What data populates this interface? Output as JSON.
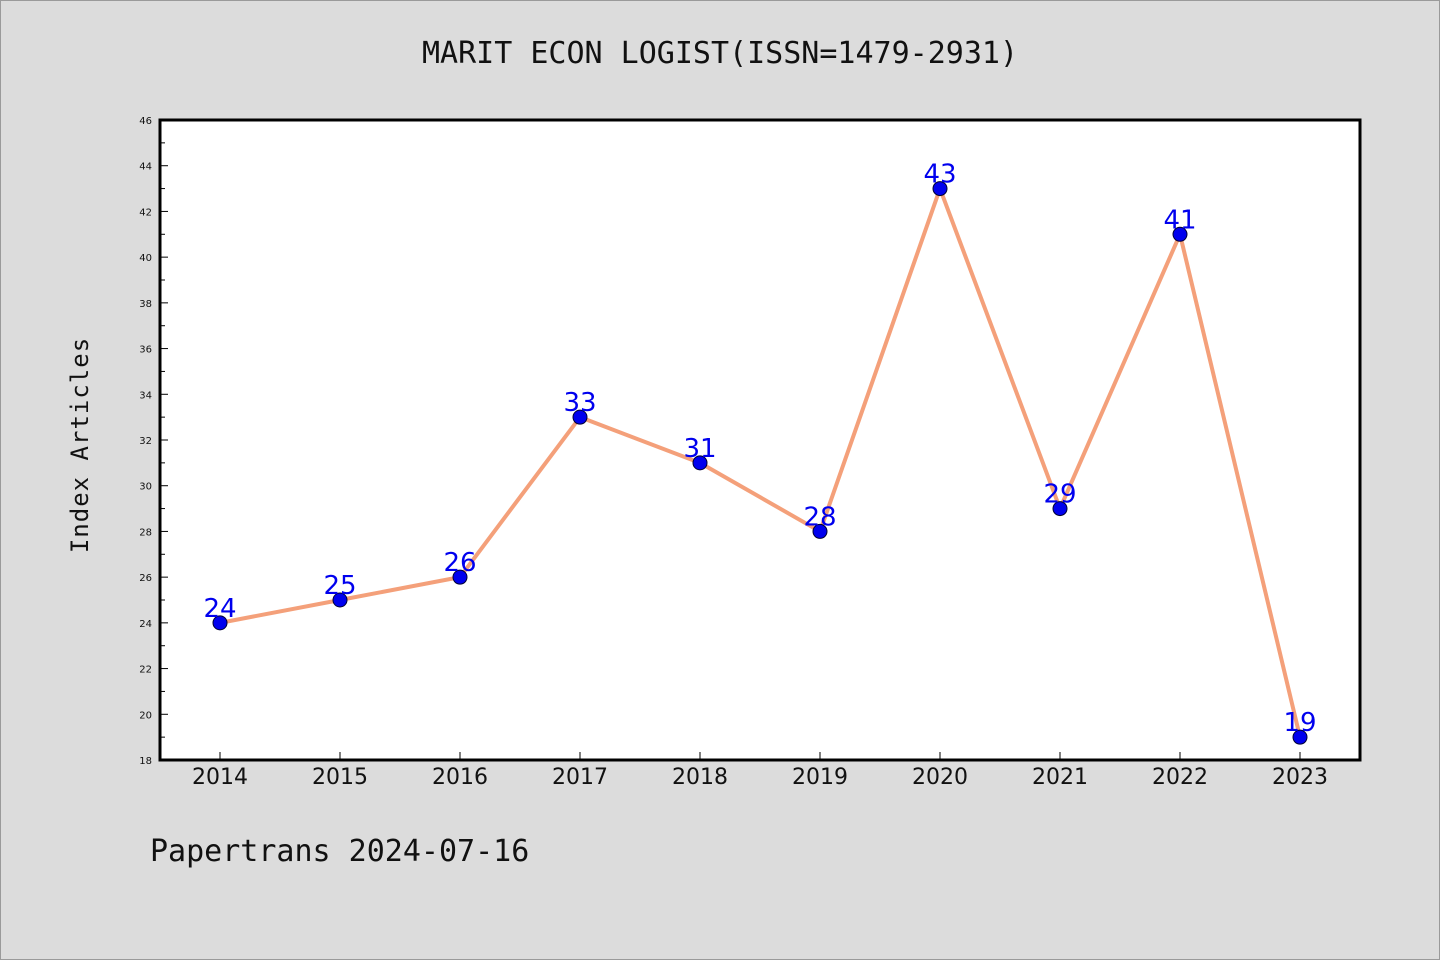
{
  "title": "MARIT ECON LOGIST(ISSN=1479-2931)",
  "footer": "Papertrans 2024-07-16",
  "colors": {
    "background": "#dcdcdc",
    "plot_background": "#ffffff",
    "line": "#f4a07a",
    "marker": "#0000ee",
    "data_label": "#0000ee"
  },
  "chart_data": {
    "type": "line",
    "title": "MARIT ECON LOGIST(ISSN=1479-2931)",
    "xlabel": "",
    "ylabel": "Index Articles",
    "x": [
      "2014",
      "2015",
      "2016",
      "2017",
      "2018",
      "2019",
      "2020",
      "2021",
      "2022",
      "2023"
    ],
    "series": [
      {
        "values": [
          24,
          25,
          26,
          33,
          31,
          28,
          43,
          29,
          41,
          19
        ]
      }
    ],
    "data_labels": [
      "24",
      "25",
      "26",
      "33",
      "31",
      "28",
      "43",
      "29",
      "41",
      "19"
    ],
    "ylim": [
      18,
      46
    ],
    "yticks": [
      "18",
      "20",
      "22",
      "24",
      "26",
      "28",
      "30",
      "32",
      "34",
      "36",
      "38",
      "40",
      "42",
      "44",
      "46"
    ],
    "grid": false,
    "legend": "none"
  }
}
